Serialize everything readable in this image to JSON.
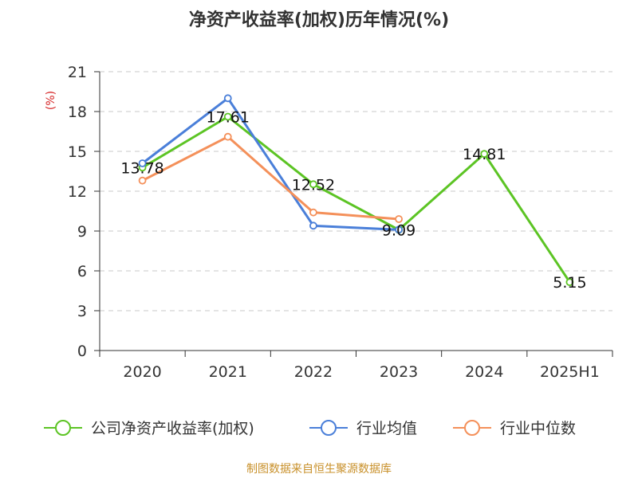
{
  "chart_data": {
    "type": "line",
    "title": "净资产收益率(加权)历年情况(%)",
    "ylabel": "(%)",
    "categories": [
      "2020",
      "2021",
      "2022",
      "2023",
      "2024",
      "2025H1"
    ],
    "ylim": [
      0,
      21
    ],
    "yticks": [
      0,
      3,
      6,
      9,
      12,
      15,
      18,
      21
    ],
    "grid": true,
    "legend_position": "bottom",
    "series": [
      {
        "name": "公司净资产收益率(加权)",
        "color": "#5cc424",
        "values": [
          13.78,
          17.61,
          12.52,
          9.09,
          14.81,
          5.15
        ],
        "labels": [
          "13.78",
          "17.61",
          "12.52",
          "9.09",
          "14.81",
          "5.15"
        ]
      },
      {
        "name": "行业均值",
        "color": "#4a7fd9",
        "values": [
          14.1,
          19.0,
          9.4,
          9.1,
          null,
          null
        ]
      },
      {
        "name": "行业中位数",
        "color": "#f4905a",
        "values": [
          12.8,
          16.1,
          10.4,
          9.9,
          null,
          null
        ]
      }
    ]
  },
  "source": "制图数据来自恒生聚源数据库"
}
